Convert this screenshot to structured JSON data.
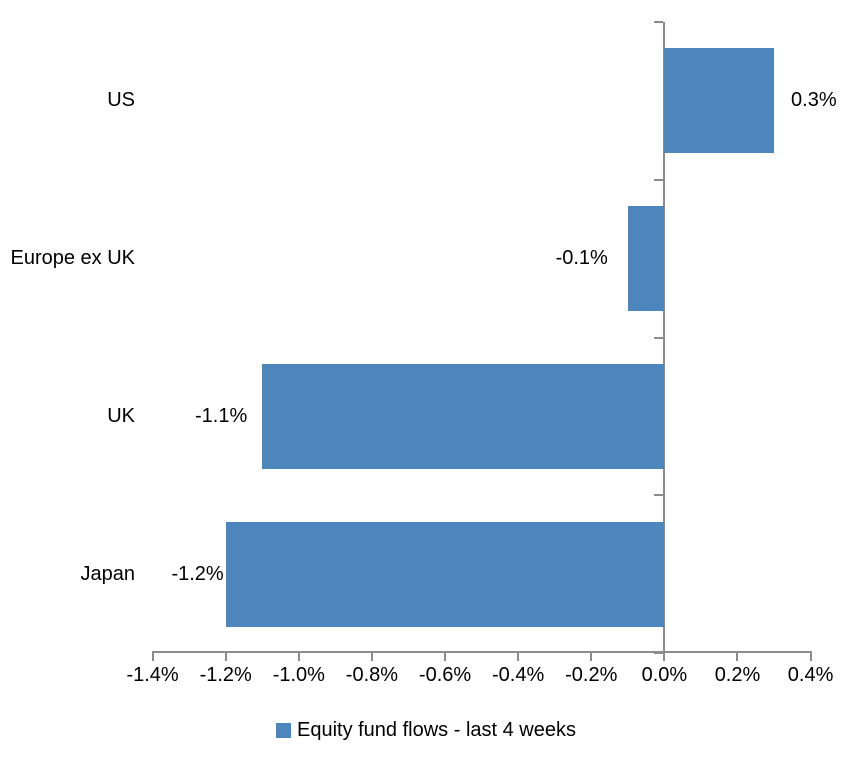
{
  "chart_data": {
    "type": "bar",
    "orientation": "horizontal",
    "title": "",
    "categories": [
      "US",
      "Europe ex UK",
      "UK",
      "Japan"
    ],
    "series": [
      {
        "name": "Equity fund flows - last 4 weeks",
        "values": [
          0.3,
          -0.1,
          -1.1,
          -1.2
        ]
      }
    ],
    "data_labels": [
      "0.3%",
      "-0.1%",
      "-1.1%",
      "-1.2%"
    ],
    "x_axis": {
      "min": -1.4,
      "max": 0.4,
      "unit": "%",
      "ticks": [
        -1.4,
        -1.2,
        -1.0,
        -0.8,
        -0.6,
        -0.4,
        -0.2,
        0.0,
        0.2,
        0.4
      ],
      "tick_labels": [
        "-1.4%",
        "-1.2%",
        "-1.0%",
        "-0.8%",
        "-0.6%",
        "-0.4%",
        "-0.2%",
        "0.0%",
        "0.2%",
        "0.4%"
      ]
    },
    "legend": {
      "label": "Equity fund flows - last 4 weeks",
      "position": "bottom",
      "marker": "square"
    },
    "colors": {
      "bar": "#4D86BC",
      "axis": "#8C8C8C",
      "text": "#000000",
      "background": "#FFFFFF"
    },
    "gridlines": false,
    "data_label_position": "outside-end"
  }
}
